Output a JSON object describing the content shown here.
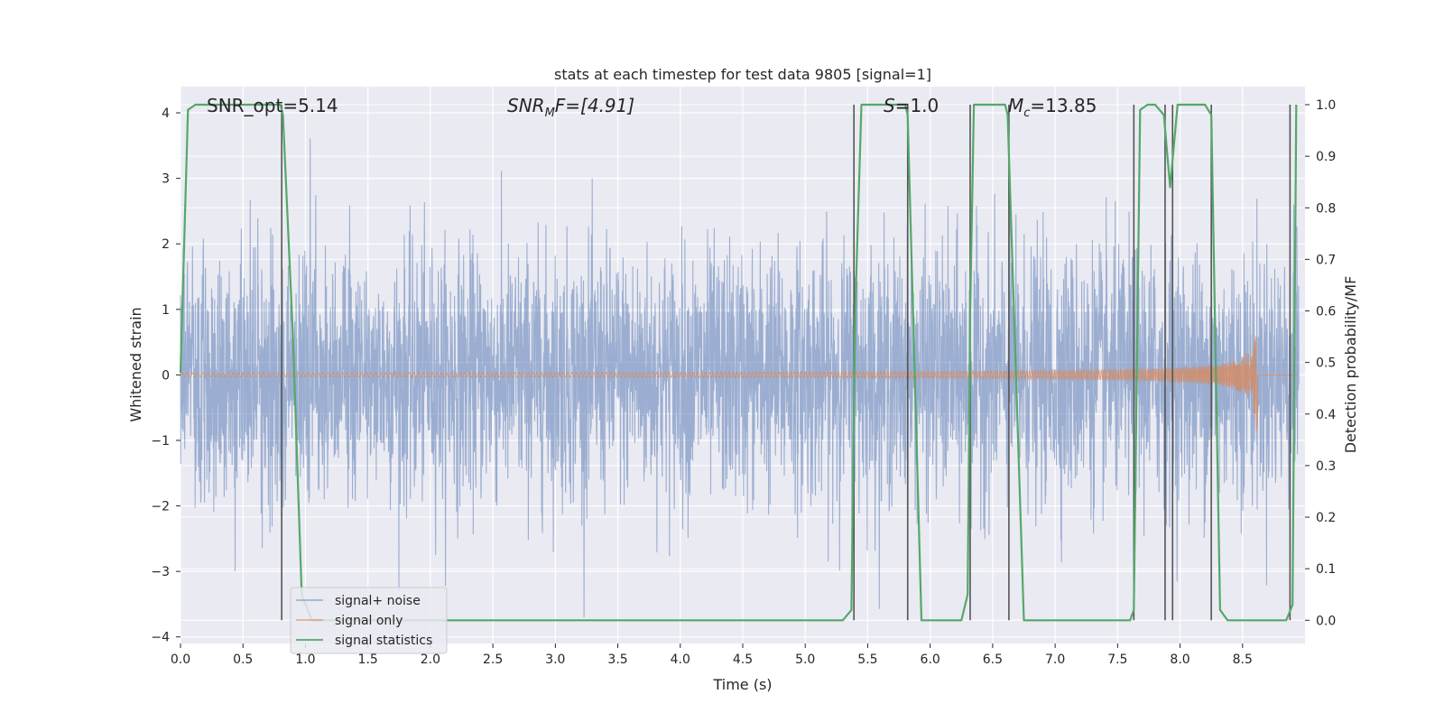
{
  "chart_data": {
    "type": "line",
    "title": "stats at each timestep for test data 9805 [signal=1]",
    "xlabel": "Time (s)",
    "ylabel": "Whitened strain",
    "y2label": "Detection probability/MF",
    "xlim": [
      0,
      9.0
    ],
    "ylim": [
      -4.1,
      4.4
    ],
    "y2lim": [
      -0.045,
      1.035
    ],
    "x_ticks": [
      0.0,
      0.5,
      1.0,
      1.5,
      2.0,
      2.5,
      3.0,
      3.5,
      4.0,
      4.5,
      5.0,
      5.5,
      6.0,
      6.5,
      7.0,
      7.5,
      8.0,
      8.5
    ],
    "x_tick_labels": [
      "0.0",
      "0.5",
      "1.0",
      "1.5",
      "2.0",
      "2.5",
      "3.0",
      "3.5",
      "4.0",
      "4.5",
      "5.0",
      "5.5",
      "6.0",
      "6.5",
      "7.0",
      "7.5",
      "8.0",
      "8.5"
    ],
    "y_ticks": [
      4,
      3,
      2,
      1,
      0,
      -1,
      -2,
      -3,
      -4
    ],
    "y_tick_labels": [
      "4",
      "3",
      "2",
      "1",
      "0",
      "−1",
      "−2",
      "−3",
      "−4"
    ],
    "y2_ticks": [
      1.0,
      0.9,
      0.8,
      0.7,
      0.6,
      0.5,
      0.4,
      0.3,
      0.2,
      0.1,
      0.0
    ],
    "y2_tick_labels": [
      "1.0",
      "0.9",
      "0.8",
      "0.7",
      "0.6",
      "0.5",
      "0.4",
      "0.3",
      "0.2",
      "0.1",
      "0.0"
    ],
    "grid": true,
    "legend_position": "lower-left",
    "colors": {
      "signal_noise": "#4c72b0",
      "signal_only": "#dd8452",
      "signal_statistics": "#55a868",
      "vertical_lines": "#555555",
      "plot_background": "#eaeaf2",
      "grid": "#ffffff"
    },
    "series": [
      {
        "name": "signal+ noise",
        "noise_sigma": 0.95,
        "y_range": [
          -3.7,
          4.0
        ]
      },
      {
        "name": "signal only",
        "chirp_end_time": 8.62,
        "peak_amplitude": 0.85,
        "min_amplitude": -0.78
      },
      {
        "name": "signal statistics",
        "axis": "right",
        "x": [
          0.0,
          0.06,
          0.12,
          0.8,
          0.82,
          0.9,
          0.97,
          1.05,
          5.3,
          5.37,
          5.4,
          5.45,
          5.8,
          5.82,
          5.93,
          6.25,
          6.3,
          6.32,
          6.35,
          6.6,
          6.62,
          6.75,
          6.8,
          7.6,
          7.63,
          7.68,
          7.74,
          7.8,
          7.87,
          7.92,
          7.98,
          8.04,
          8.2,
          8.25,
          8.32,
          8.38,
          8.85,
          8.9,
          8.93
        ],
        "y": [
          0.48,
          0.99,
          1.0,
          1.0,
          0.98,
          0.55,
          0.05,
          0.0,
          0.0,
          0.02,
          0.6,
          1.0,
          1.0,
          0.98,
          0.0,
          0.0,
          0.05,
          0.6,
          1.0,
          1.0,
          0.98,
          0.0,
          0.0,
          0.0,
          0.02,
          0.99,
          1.0,
          1.0,
          0.98,
          0.84,
          1.0,
          1.0,
          1.0,
          0.98,
          0.02,
          0.0,
          0.0,
          0.03,
          1.0
        ]
      }
    ],
    "vertical_lines_x": [
      0.81,
      5.39,
      5.82,
      6.32,
      6.63,
      7.63,
      7.88,
      7.94,
      8.25,
      8.88
    ],
    "annotations": [
      {
        "text": "SNR_opt=5.14",
        "x": 0.2
      },
      {
        "text_parts": [
          "SNR",
          "M",
          "F=[4.91]"
        ],
        "x": 2.6,
        "type": "snr_mf"
      },
      {
        "text_parts": [
          "S",
          "=1.0"
        ],
        "x": 5.6,
        "type": "s"
      },
      {
        "text_parts": [
          "M",
          "c",
          "=13.85"
        ],
        "x": 6.6,
        "type": "mc"
      }
    ],
    "legend": [
      {
        "label": "signal+ noise",
        "color": "#4c72b0",
        "alpha": 0.55
      },
      {
        "label": "signal only",
        "color": "#dd8452",
        "alpha": 0.7
      },
      {
        "label": "signal statistics",
        "color": "#55a868",
        "alpha": 1.0
      }
    ]
  }
}
